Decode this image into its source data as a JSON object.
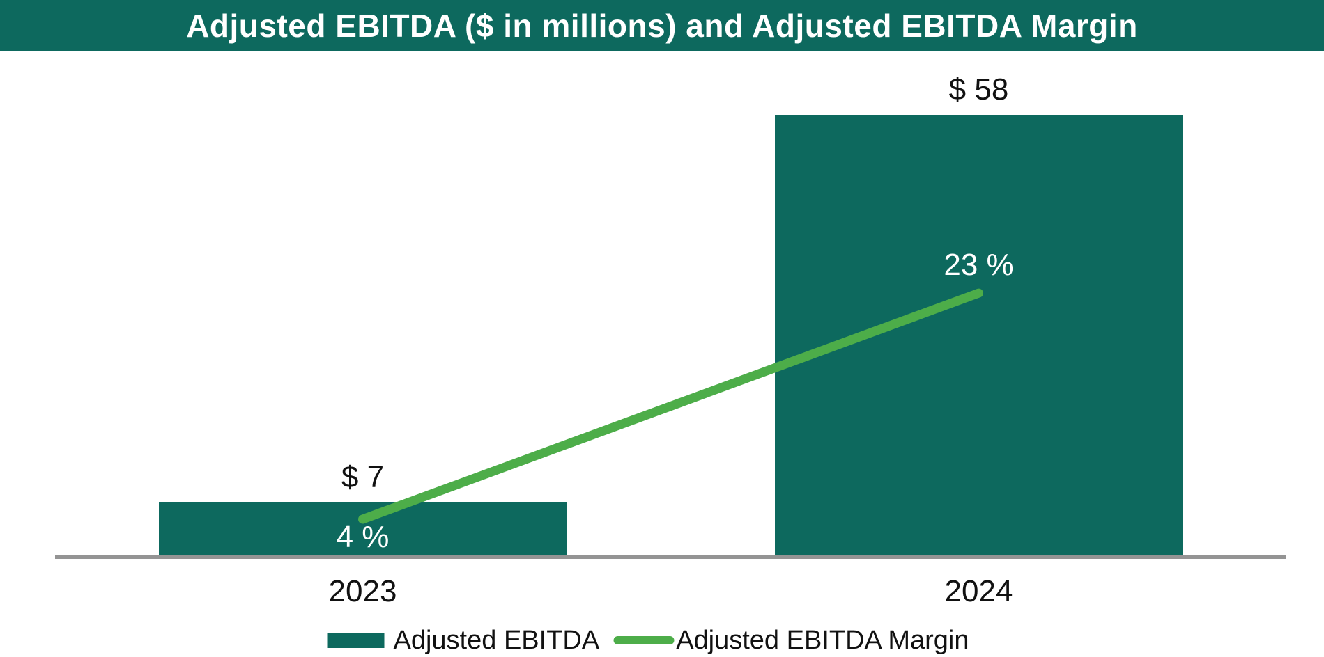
{
  "header": {
    "title": "Adjusted EBITDA ($ in millions) and Adjusted EBITDA Margin"
  },
  "colors": {
    "header_bg": "#0D695E",
    "bar_fill": "#0D695E",
    "line_stroke": "#4DAD49",
    "axis_line": "#949494",
    "label_dark": "#111111",
    "label_light": "#FFFFFF",
    "background": "#FFFFFF"
  },
  "chart_data": {
    "type": "combo bar+line",
    "title": "Adjusted EBITDA ($ in millions) and Adjusted EBITDA Margin",
    "categories": [
      "2023",
      "2024"
    ],
    "series": [
      {
        "name": "Adjusted EBITDA",
        "type": "bar",
        "unit": "$ millions",
        "values": [
          7,
          58
        ],
        "data_labels": [
          "$ 7",
          "$ 58"
        ],
        "color": "#0D695E"
      },
      {
        "name": "Adjusted EBITDA Margin",
        "type": "line",
        "unit": "percent",
        "values": [
          4,
          23
        ],
        "data_labels": [
          "4 %",
          "23 %"
        ],
        "color": "#4DAD49"
      }
    ],
    "legend_position": "bottom",
    "grid": false,
    "value_axis_visible": false,
    "category_axis_line": true
  },
  "legend": {
    "items": [
      {
        "label": "Adjusted EBITDA",
        "swatch": "bar"
      },
      {
        "label": "Adjusted EBITDA Margin",
        "swatch": "line"
      }
    ]
  }
}
